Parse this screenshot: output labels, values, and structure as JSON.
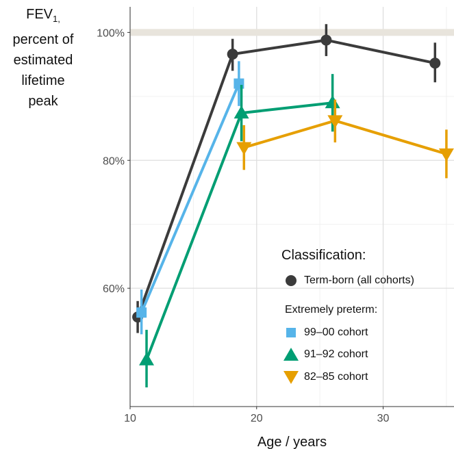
{
  "chart_data": {
    "type": "line",
    "ylabel_main": "FEV",
    "ylabel_sub": "1,",
    "ylabel_lines": [
      "percent of",
      "estimated",
      "lifetime",
      "peak"
    ],
    "xlabel": "Age / years",
    "xlim": [
      10,
      35.6
    ],
    "ylim": [
      41.5,
      104
    ],
    "x_ticks": [
      10,
      20,
      30
    ],
    "y_ticks": [
      60,
      80,
      100
    ],
    "y_tick_labels": [
      "60%",
      "80%",
      "100%"
    ],
    "reference_line": 100,
    "legend": {
      "title": "Classification:",
      "subtitle": "Extremely preterm:",
      "placement": "bottom-right"
    },
    "series": [
      {
        "name": "Term-born (all cohorts)",
        "color": "#3b3b3b",
        "marker": "circle",
        "points": [
          {
            "x": 10.6,
            "y": 55.5,
            "lo": 53.0,
            "hi": 58.0
          },
          {
            "x": 18.1,
            "y": 96.6,
            "lo": 94.0,
            "hi": 99.0
          },
          {
            "x": 25.5,
            "y": 98.8,
            "lo": 96.3,
            "hi": 101.3
          },
          {
            "x": 34.1,
            "y": 95.2,
            "lo": 92.2,
            "hi": 98.4
          }
        ]
      },
      {
        "name": "99–00 cohort",
        "color": "#56b4e9",
        "marker": "square",
        "points": [
          {
            "x": 10.9,
            "y": 56.2,
            "lo": 52.8,
            "hi": 59.8
          },
          {
            "x": 18.6,
            "y": 92.0,
            "lo": 88.5,
            "hi": 95.5
          }
        ]
      },
      {
        "name": "91–92 cohort",
        "color": "#009e73",
        "marker": "triangle-up",
        "points": [
          {
            "x": 11.3,
            "y": 48.8,
            "lo": 44.5,
            "hi": 53.5
          },
          {
            "x": 18.8,
            "y": 87.4,
            "lo": 83.0,
            "hi": 91.8
          },
          {
            "x": 26.0,
            "y": 89.0,
            "lo": 84.5,
            "hi": 93.5
          }
        ]
      },
      {
        "name": "82–85 cohort",
        "color": "#e69f00",
        "marker": "triangle-down",
        "points": [
          {
            "x": 19.0,
            "y": 82.0,
            "lo": 78.5,
            "hi": 85.5
          },
          {
            "x": 26.2,
            "y": 86.2,
            "lo": 82.8,
            "hi": 89.5
          },
          {
            "x": 35.0,
            "y": 81.0,
            "lo": 77.2,
            "hi": 84.8
          }
        ]
      }
    ]
  }
}
